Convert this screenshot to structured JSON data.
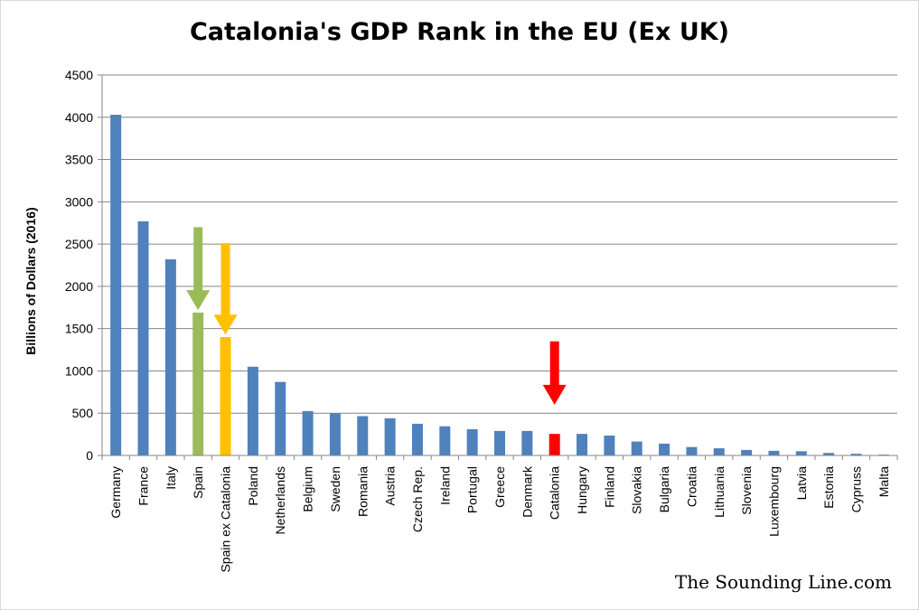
{
  "chart_data": {
    "type": "bar",
    "title": "Catalonia's GDP Rank in the EU (Ex UK)",
    "xlabel": "",
    "ylabel": "Billions of Dollars (2016)",
    "ylim": [
      0,
      4500
    ],
    "yticks": [
      0,
      500,
      1000,
      1500,
      2000,
      2500,
      3000,
      3500,
      4000,
      4500
    ],
    "grid": true,
    "legend": "none",
    "categories": [
      "Germany",
      "France",
      "Italy",
      "Spain",
      "Spain ex Catalonia",
      "Poland",
      "Netherlands",
      "Belgium",
      "Sweden",
      "Romania",
      "Austria",
      "Czech Rep.",
      "Ireland",
      "Portugal",
      "Greece",
      "Denmark",
      "Catalonia",
      "Hungary",
      "Finland",
      "Slovakia",
      "Bulgaria",
      "Croatia",
      "Lithuania",
      "Slovenia",
      "Luxembourg",
      "Latvia",
      "Estonia",
      "Cypruss",
      "Malta"
    ],
    "values": [
      4030,
      2770,
      2320,
      1690,
      1400,
      1050,
      870,
      525,
      500,
      465,
      440,
      375,
      345,
      310,
      290,
      290,
      255,
      255,
      235,
      165,
      140,
      100,
      85,
      65,
      55,
      50,
      30,
      20,
      10
    ],
    "colors": {
      "default": "#4f81bd",
      "Spain": "#9bbb59",
      "Spain ex Catalonia": "#ffc000",
      "Catalonia": "#ff0000"
    },
    "annotations": [
      {
        "type": "arrow",
        "category": "Spain",
        "from": 2700,
        "to": 1720,
        "color": "#9bbb59"
      },
      {
        "type": "arrow",
        "category": "Spain ex Catalonia",
        "from": 2510,
        "to": 1430,
        "color": "#ffc000"
      },
      {
        "type": "arrow",
        "category": "Catalonia",
        "from": 1350,
        "to": 600,
        "color": "#ff0000"
      }
    ]
  },
  "watermark": "The Sounding Line.com"
}
